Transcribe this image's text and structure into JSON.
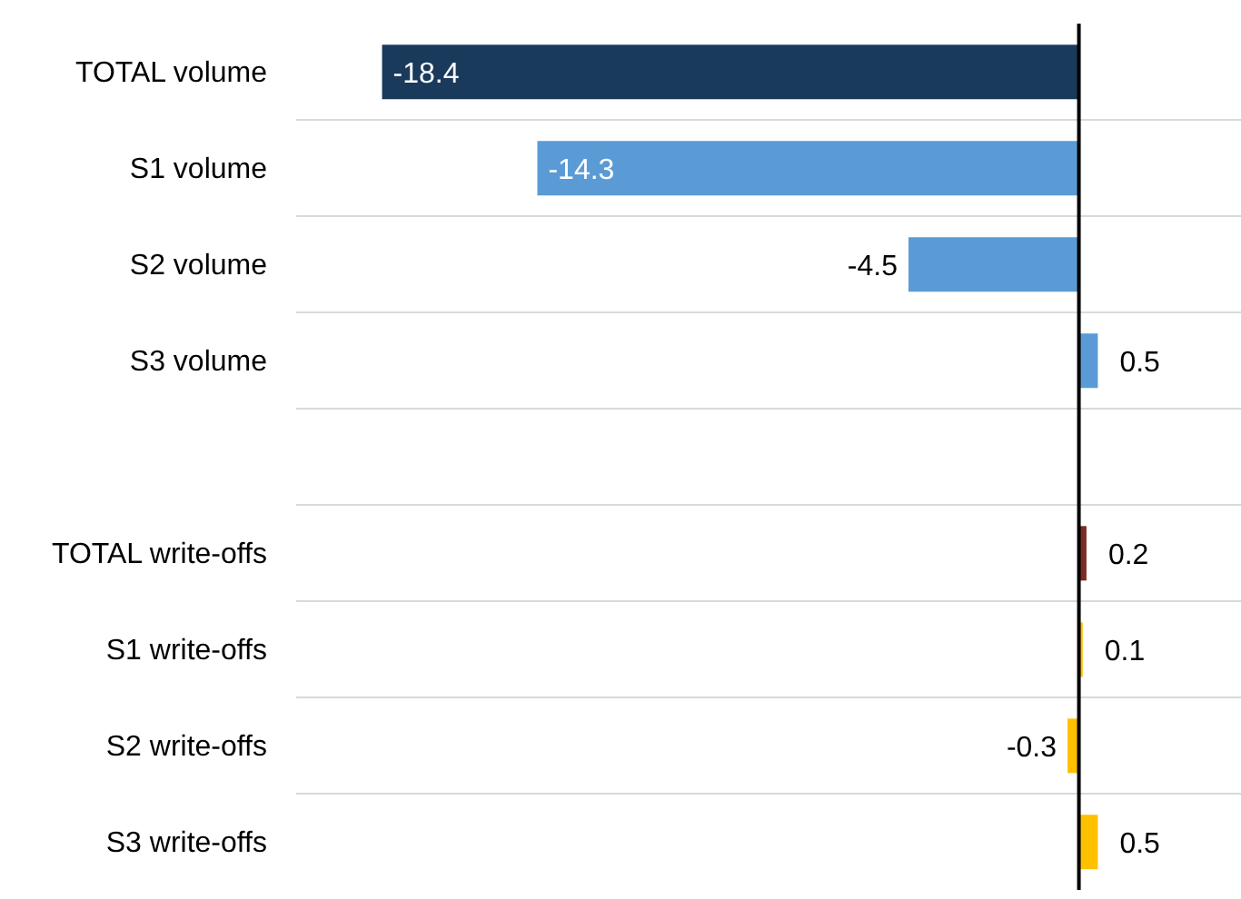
{
  "chart_data": {
    "type": "bar",
    "orientation": "horizontal",
    "categories": [
      "TOTAL volume",
      "S1 volume",
      "S2 volume",
      "S3 volume",
      null,
      "TOTAL write-offs",
      "S1 write-offs",
      "S2 write-offs",
      "S3 write-offs"
    ],
    "values": [
      -18.4,
      -14.3,
      -4.5,
      0.5,
      null,
      0.2,
      0.1,
      -0.3,
      0.5
    ],
    "colors": [
      "#1a3a5c",
      "#5b9bd5",
      "#5b9bd5",
      "#5b9bd5",
      null,
      "#7b2c24",
      "#ffc000",
      "#ffc000",
      "#ffc000"
    ],
    "data_labels": true,
    "grid": "y"
  }
}
